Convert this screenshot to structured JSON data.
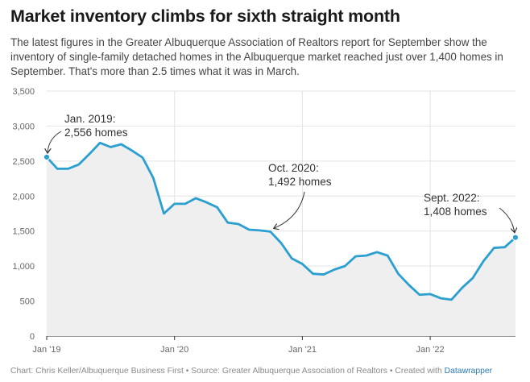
{
  "title": "Market inventory climbs for sixth straight month",
  "description": "The latest figures in the Greater Albuquerque Association of Realtors report for September show the inventory of single-family detached homes in the Albuquerque market reached just over 1,400 homes in September. That's more than 2.5 times what it was in March.",
  "footer": {
    "prefix": "Chart: Chris Keller/Albuquerque Business First • Source: Greater Albuquerque Association of Realtors • Created with ",
    "link": "Datawrapper"
  },
  "chart_data": {
    "type": "area",
    "title": "Market inventory climbs for sixth straight month",
    "xlabel": "",
    "ylabel": "",
    "ylim": [
      0,
      3500
    ],
    "yticks": [
      0,
      500,
      1000,
      1500,
      2000,
      2500,
      3000,
      3500
    ],
    "ytick_labels": [
      "0",
      "500",
      "1,000",
      "1,500",
      "2,000",
      "2,500",
      "3,000",
      "3,500"
    ],
    "xticks": [
      {
        "date": "2019-01",
        "label": "Jan '19"
      },
      {
        "date": "2020-01",
        "label": "Jan '20"
      },
      {
        "date": "2021-01",
        "label": "Jan '21"
      },
      {
        "date": "2022-01",
        "label": "Jan '22"
      }
    ],
    "grid": true,
    "line_color": "#2a9fd0",
    "fill_color": "#efefef",
    "series": [
      {
        "x": [
          "2019-01",
          "2019-02",
          "2019-03",
          "2019-04",
          "2019-05",
          "2019-06",
          "2019-07",
          "2019-08",
          "2019-09",
          "2019-10",
          "2019-11",
          "2019-12",
          "2020-01",
          "2020-02",
          "2020-03",
          "2020-04",
          "2020-05",
          "2020-06",
          "2020-07",
          "2020-08",
          "2020-09",
          "2020-10",
          "2020-11",
          "2020-12",
          "2021-01",
          "2021-02",
          "2021-03",
          "2021-04",
          "2021-05",
          "2021-06",
          "2021-07",
          "2021-08",
          "2021-09",
          "2021-10",
          "2021-11",
          "2021-12",
          "2022-01",
          "2022-02",
          "2022-03",
          "2022-04",
          "2022-05",
          "2022-06",
          "2022-07",
          "2022-08",
          "2022-09"
        ],
        "values": [
          2556,
          2390,
          2390,
          2450,
          2600,
          2760,
          2700,
          2740,
          2650,
          2550,
          2260,
          1750,
          1890,
          1890,
          1970,
          1910,
          1840,
          1620,
          1600,
          1520,
          1510,
          1492,
          1330,
          1110,
          1030,
          890,
          880,
          950,
          1000,
          1140,
          1150,
          1200,
          1150,
          890,
          730,
          590,
          600,
          540,
          520,
          690,
          830,
          1070,
          1260,
          1270,
          1408
        ]
      }
    ],
    "annotations": [
      {
        "x": "2019-01",
        "y": 2556,
        "line1": "Jan. 2019:",
        "line2": "2,556 homes"
      },
      {
        "x": "2020-10",
        "y": 1492,
        "line1": "Oct. 2020:",
        "line2": "1,492 homes"
      },
      {
        "x": "2022-09",
        "y": 1408,
        "line1": "Sept. 2022:",
        "line2": "1,408 homes"
      }
    ]
  }
}
